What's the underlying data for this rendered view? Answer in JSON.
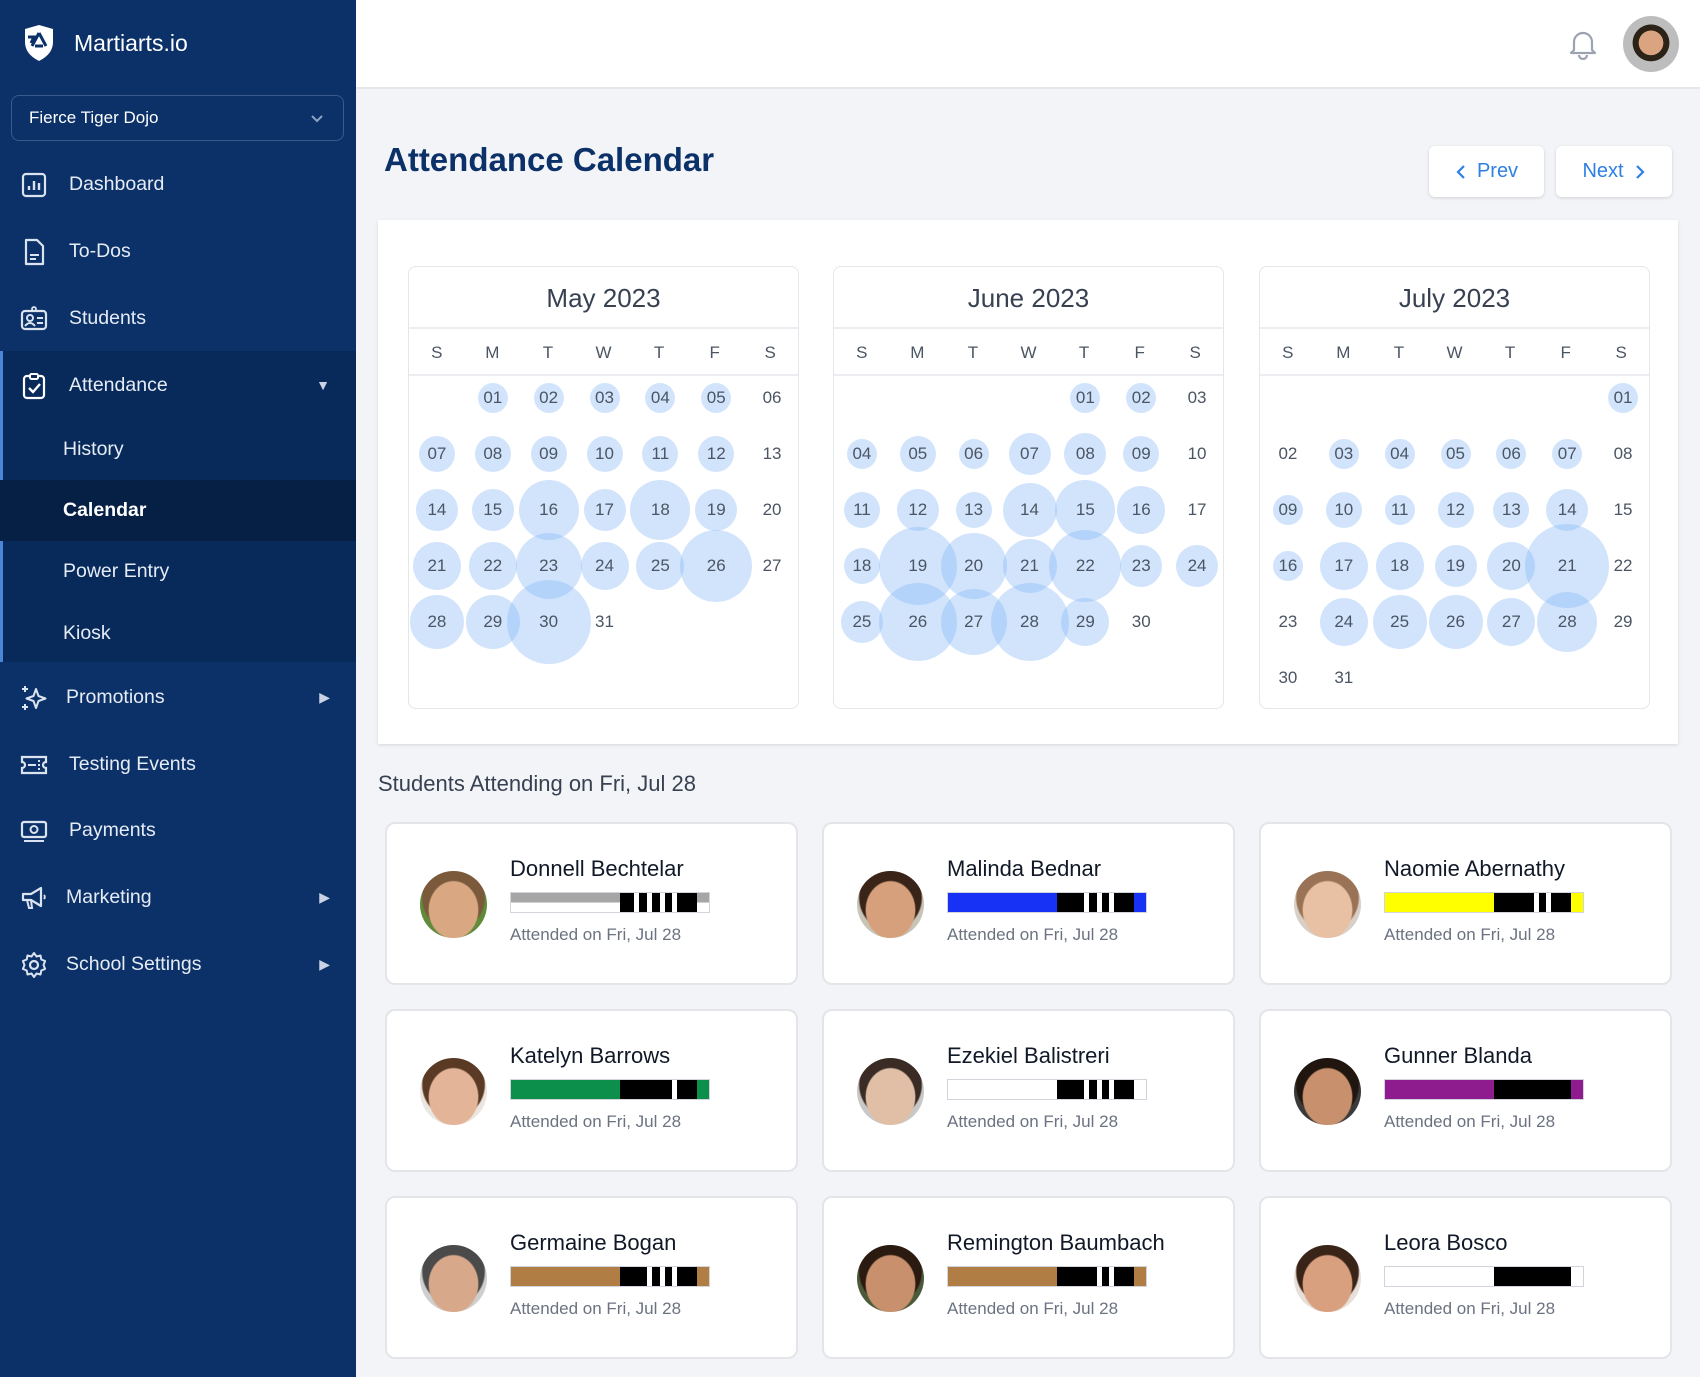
{
  "app": {
    "name": "Martiarts.io",
    "school": "Fierce Tiger Dojo"
  },
  "sidebar": {
    "items": [
      {
        "label": "Dashboard",
        "icon": "chart-bar-icon"
      },
      {
        "label": "To-Dos",
        "icon": "document-icon"
      },
      {
        "label": "Students",
        "icon": "id-card-icon"
      },
      {
        "label": "Attendance",
        "icon": "clipboard-check-icon",
        "expanded": true,
        "children": [
          {
            "label": "History"
          },
          {
            "label": "Calendar",
            "active": true
          },
          {
            "label": "Power Entry"
          },
          {
            "label": "Kiosk"
          }
        ]
      },
      {
        "label": "Promotions",
        "icon": "sparkles-icon",
        "has_submenu": true
      },
      {
        "label": "Testing Events",
        "icon": "ticket-icon"
      },
      {
        "label": "Payments",
        "icon": "cash-icon"
      },
      {
        "label": "Marketing",
        "icon": "megaphone-icon",
        "has_submenu": true
      },
      {
        "label": "School Settings",
        "icon": "gear-icon",
        "has_submenu": true
      }
    ]
  },
  "header": {
    "notifications_icon": "bell-icon"
  },
  "page": {
    "title": "Attendance Calendar",
    "prev_label": "Prev",
    "next_label": "Next"
  },
  "calendar": {
    "weekdays": [
      "S",
      "M",
      "T",
      "W",
      "T",
      "F",
      "S"
    ],
    "bubble_color": "#85b8f7",
    "months": [
      {
        "title": "May 2023",
        "first_weekday": 1,
        "days": 31,
        "attendance_levels": {
          "01": 1,
          "02": 1,
          "03": 1,
          "04": 1,
          "05": 1,
          "07": 2,
          "08": 2,
          "09": 2,
          "10": 2,
          "11": 2,
          "12": 2,
          "14": 3,
          "15": 3,
          "16": 6,
          "17": 3,
          "18": 6,
          "19": 3,
          "21": 4,
          "22": 4,
          "23": 7,
          "24": 4,
          "25": 4,
          "26": 8,
          "28": 5,
          "29": 5,
          "30": 10
        }
      },
      {
        "title": "June 2023",
        "first_weekday": 4,
        "days": 30,
        "attendance_levels": {
          "01": 1,
          "02": 1,
          "04": 1,
          "05": 2,
          "06": 1,
          "07": 3,
          "08": 3,
          "09": 2,
          "11": 2,
          "12": 3,
          "13": 2,
          "14": 5,
          "15": 6,
          "16": 4,
          "18": 2,
          "19": 9,
          "20": 7,
          "21": 5,
          "22": 8,
          "23": 3,
          "24": 3,
          "25": 3,
          "26": 9,
          "27": 7,
          "28": 9,
          "29": 4
        }
      },
      {
        "title": "July 2023",
        "first_weekday": 6,
        "days": 31,
        "attendance_levels": {
          "01": 1,
          "03": 1,
          "04": 1,
          "05": 1,
          "06": 1,
          "07": 1,
          "09": 1,
          "10": 2,
          "11": 1,
          "12": 2,
          "13": 2,
          "14": 3,
          "16": 1,
          "17": 4,
          "18": 4,
          "19": 3,
          "20": 4,
          "21": 10,
          "24": 4,
          "25": 5,
          "26": 5,
          "27": 4,
          "28": 6
        }
      }
    ]
  },
  "attending": {
    "heading": "Students Attending on Fri, Jul 28",
    "students": [
      {
        "name": "Donnell Bechtelar",
        "attended": "Attended on Fri, Jul 28",
        "belt_color": "#a6a6a6",
        "belt_color_bottom": "#ffffff",
        "stripes": 4,
        "avatar": [
          "#d9a882",
          "#7a5a3a",
          "#5f8b3a"
        ]
      },
      {
        "name": "Malinda Bednar",
        "attended": "Attended on Fri, Jul 28",
        "belt_color": "#1732f5",
        "stripes": 3,
        "avatar": [
          "#d6a07c",
          "#3a2418",
          "#c9c4b8"
        ]
      },
      {
        "name": "Naomie Abernathy",
        "attended": "Attended on Fri, Jul 28",
        "belt_color": "#ffff00",
        "stripes": 2,
        "avatar": [
          "#e8c0a4",
          "#9a7356",
          "#d8d0c8"
        ]
      },
      {
        "name": "Katelyn Barrows",
        "attended": "Attended on Fri, Jul 28",
        "belt_color": "#0b8f4a",
        "stripes": 1,
        "avatar": [
          "#e3b497",
          "#5a3a24",
          "#ece6e0"
        ]
      },
      {
        "name": "Ezekiel Balistreri",
        "attended": "Attended on Fri, Jul 28",
        "belt_color": "#ffffff",
        "stripes": 3,
        "avatar": [
          "#e0bfa6",
          "#3a2c24",
          "#c8c8c8"
        ]
      },
      {
        "name": "Gunner Blanda",
        "attended": "Attended on Fri, Jul 28",
        "belt_color": "#8e1c8e",
        "stripes": 0,
        "avatar": [
          "#c8906c",
          "#20160f",
          "#3a3a3a"
        ]
      },
      {
        "name": "Germaine Bogan",
        "attended": "Attended on Fri, Jul 28",
        "belt_color": "#b07d45",
        "stripes": 3,
        "avatar": [
          "#d8a88a",
          "#4a4a4a",
          "#cfcfcf"
        ]
      },
      {
        "name": "Remington Baumbach",
        "attended": "Attended on Fri, Jul 28",
        "belt_color": "#b07d45",
        "stripes": 2,
        "avatar": [
          "#c8906c",
          "#2a1a10",
          "#4a5a3a"
        ]
      },
      {
        "name": "Leora Bosco",
        "attended": "Attended on Fri, Jul 28",
        "belt_color": "#ffffff",
        "stripes": 0,
        "avatar": [
          "#d8a07e",
          "#3a2418",
          "#e8e0d8"
        ]
      }
    ]
  }
}
